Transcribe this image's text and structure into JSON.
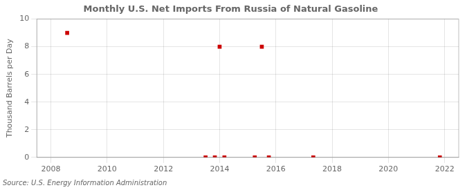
{
  "chart_data": {
    "type": "scatter",
    "title": "Monthly U.S. Net Imports From Russia of Natural Gasoline",
    "ylabel": "Thousand Barrels per Day",
    "source": "Source: U.S. Energy Information Administration",
    "x": [
      2008.58,
      2013.5,
      2013.83,
      2014.0,
      2014.17,
      2015.25,
      2015.5,
      2015.75,
      2017.33,
      2021.83
    ],
    "values": [
      9.0,
      0.0,
      0.0,
      8.0,
      0.0,
      0.0,
      8.0,
      0.0,
      0.0,
      0.0
    ],
    "color": "#cc0000",
    "marker": "square",
    "xlim": [
      2007.5,
      2022.5
    ],
    "ylim": [
      0,
      10
    ],
    "xticks": [
      2008,
      2010,
      2012,
      2014,
      2016,
      2018,
      2020,
      2022
    ],
    "yticks": [
      0,
      2,
      4,
      6,
      8,
      10
    ],
    "grid": true
  }
}
